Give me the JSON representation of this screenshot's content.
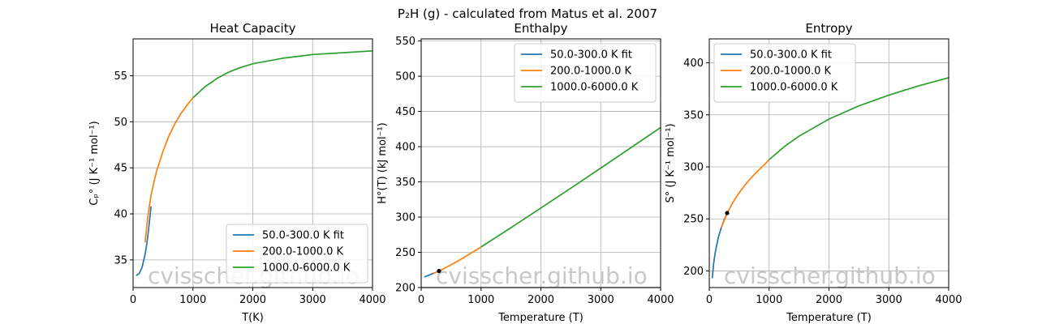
{
  "figure": {
    "suptitle": "P₂H (g) - calculated from Matus et al. 2007",
    "watermark": "cvisscher.github.io"
  },
  "colors": {
    "fit": "#1f77b4",
    "low": "#ff7f0e",
    "high": "#2ca02c",
    "grid": "#b0b0b0"
  },
  "chart_data": [
    {
      "type": "line",
      "title": "Heat Capacity",
      "xlabel": "T(K)",
      "ylabel": "Cₚ° (J K⁻¹ mol⁻¹)",
      "xlim": [
        0,
        4000
      ],
      "ylim": [
        32,
        59
      ],
      "xticks": [
        0,
        1000,
        2000,
        3000,
        4000
      ],
      "yticks": [
        35,
        40,
        45,
        50,
        55
      ],
      "grid": true,
      "legend_position": "lower right",
      "series": [
        {
          "name": "50.0-300.0 K fit",
          "color": "#1f77b4",
          "x": [
            50,
            100,
            150,
            200,
            230,
            260,
            300
          ],
          "y": [
            33.3,
            33.5,
            34.2,
            35.6,
            36.8,
            38.4,
            40.8
          ]
        },
        {
          "name": "200.0-1000.0 K",
          "color": "#ff7f0e",
          "x": [
            200,
            250,
            300,
            350,
            400,
            500,
            600,
            700,
            800,
            900,
            1000
          ],
          "y": [
            36.9,
            39.9,
            42.0,
            43.5,
            44.8,
            46.8,
            48.5,
            49.8,
            50.9,
            51.8,
            52.6
          ]
        },
        {
          "name": "1000.0-6000.0 K",
          "color": "#2ca02c",
          "x": [
            1000,
            1200,
            1400,
            1600,
            1800,
            2000,
            2500,
            3000,
            3500,
            4000
          ],
          "y": [
            52.6,
            53.8,
            54.7,
            55.4,
            55.9,
            56.3,
            56.9,
            57.3,
            57.5,
            57.7
          ]
        }
      ],
      "points": []
    },
    {
      "type": "line",
      "title": "Enthalpy",
      "xlabel": "Temperature (T)",
      "ylabel": "H°(T) (kJ mol⁻¹)",
      "xlim": [
        0,
        4000
      ],
      "ylim": [
        200,
        553
      ],
      "xticks": [
        0,
        1000,
        2000,
        3000,
        4000
      ],
      "yticks": [
        200,
        250,
        300,
        350,
        400,
        450,
        500,
        550
      ],
      "grid": true,
      "legend_position": "upper right",
      "hline": 200,
      "series": [
        {
          "name": "50.0-300.0 K fit",
          "color": "#1f77b4",
          "x": [
            50,
            100,
            150,
            200,
            250,
            300
          ],
          "y": [
            214.9,
            216.6,
            218.3,
            220.0,
            221.7,
            223.5
          ]
        },
        {
          "name": "200.0-1000.0 K",
          "color": "#ff7f0e",
          "x": [
            200,
            300,
            400,
            500,
            600,
            700,
            800,
            900,
            1000
          ],
          "y": [
            220.0,
            223.5,
            227.8,
            232.3,
            237.1,
            242.0,
            247.2,
            252.3,
            257.6
          ]
        },
        {
          "name": "1000.0-6000.0 K",
          "color": "#2ca02c",
          "x": [
            1000,
            1500,
            2000,
            2500,
            3000,
            3500,
            4000
          ],
          "y": [
            257.6,
            285.0,
            312.9,
            341.1,
            369.6,
            398.3,
            427.1
          ]
        }
      ],
      "points": [
        {
          "x": 298.15,
          "y": 223.5
        }
      ]
    },
    {
      "type": "line",
      "title": "Entropy",
      "xlabel": "Temperature (T)",
      "ylabel": "S° (J K⁻¹ mol⁻¹)",
      "xlim": [
        0,
        4000
      ],
      "ylim": [
        184,
        423
      ],
      "xticks": [
        0,
        1000,
        2000,
        3000,
        4000
      ],
      "yticks": [
        200,
        250,
        300,
        350,
        400
      ],
      "grid": true,
      "legend_position": "upper left",
      "series": [
        {
          "name": "50.0-300.0 K fit",
          "color": "#1f77b4",
          "x": [
            50,
            75,
            100,
            150,
            200,
            250,
            300
          ],
          "y": [
            193,
            208,
            218,
            232,
            241.5,
            249.2,
            255.6
          ]
        },
        {
          "name": "200.0-1000.0 K",
          "color": "#ff7f0e",
          "x": [
            200,
            300,
            400,
            500,
            600,
            700,
            800,
            900,
            1000
          ],
          "y": [
            241.5,
            255.6,
            266.4,
            275.2,
            282.8,
            289.5,
            295.5,
            300.9,
            306.9
          ]
        },
        {
          "name": "1000.0-6000.0 K",
          "color": "#2ca02c",
          "x": [
            1000,
            1250,
            1500,
            2000,
            2500,
            3000,
            3500,
            4000
          ],
          "y": [
            306.9,
            319.3,
            329.5,
            345.9,
            358.6,
            369.0,
            377.9,
            385.6
          ]
        }
      ],
      "points": [
        {
          "x": 298.15,
          "y": 255.6
        }
      ]
    }
  ]
}
